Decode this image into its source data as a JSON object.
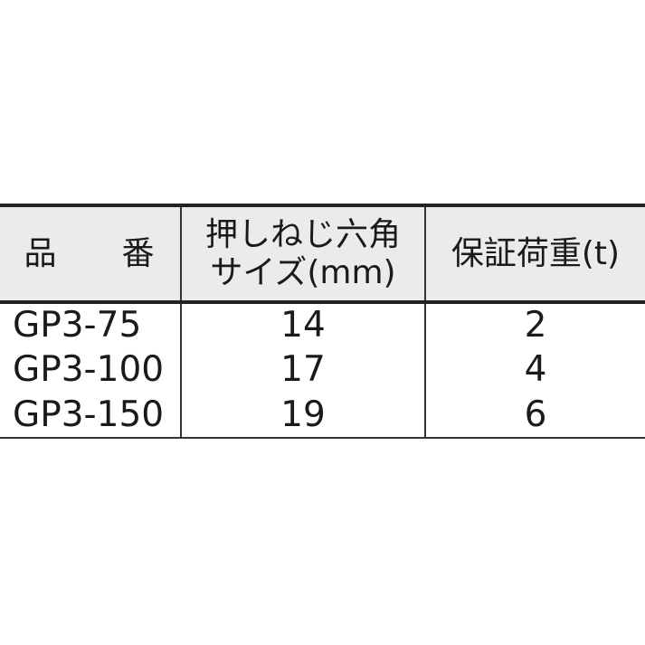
{
  "table": {
    "headers": [
      {
        "line1": "品",
        "line2": "番"
      },
      {
        "line1": "押しねじ六角",
        "line2": "サイズ(mm)"
      },
      {
        "line1": "保証荷重(t)"
      }
    ],
    "rows": [
      [
        "GP3-75",
        "14",
        "2"
      ],
      [
        "GP3-100",
        "17",
        "4"
      ],
      [
        "GP3-150",
        "19",
        "6"
      ]
    ]
  }
}
